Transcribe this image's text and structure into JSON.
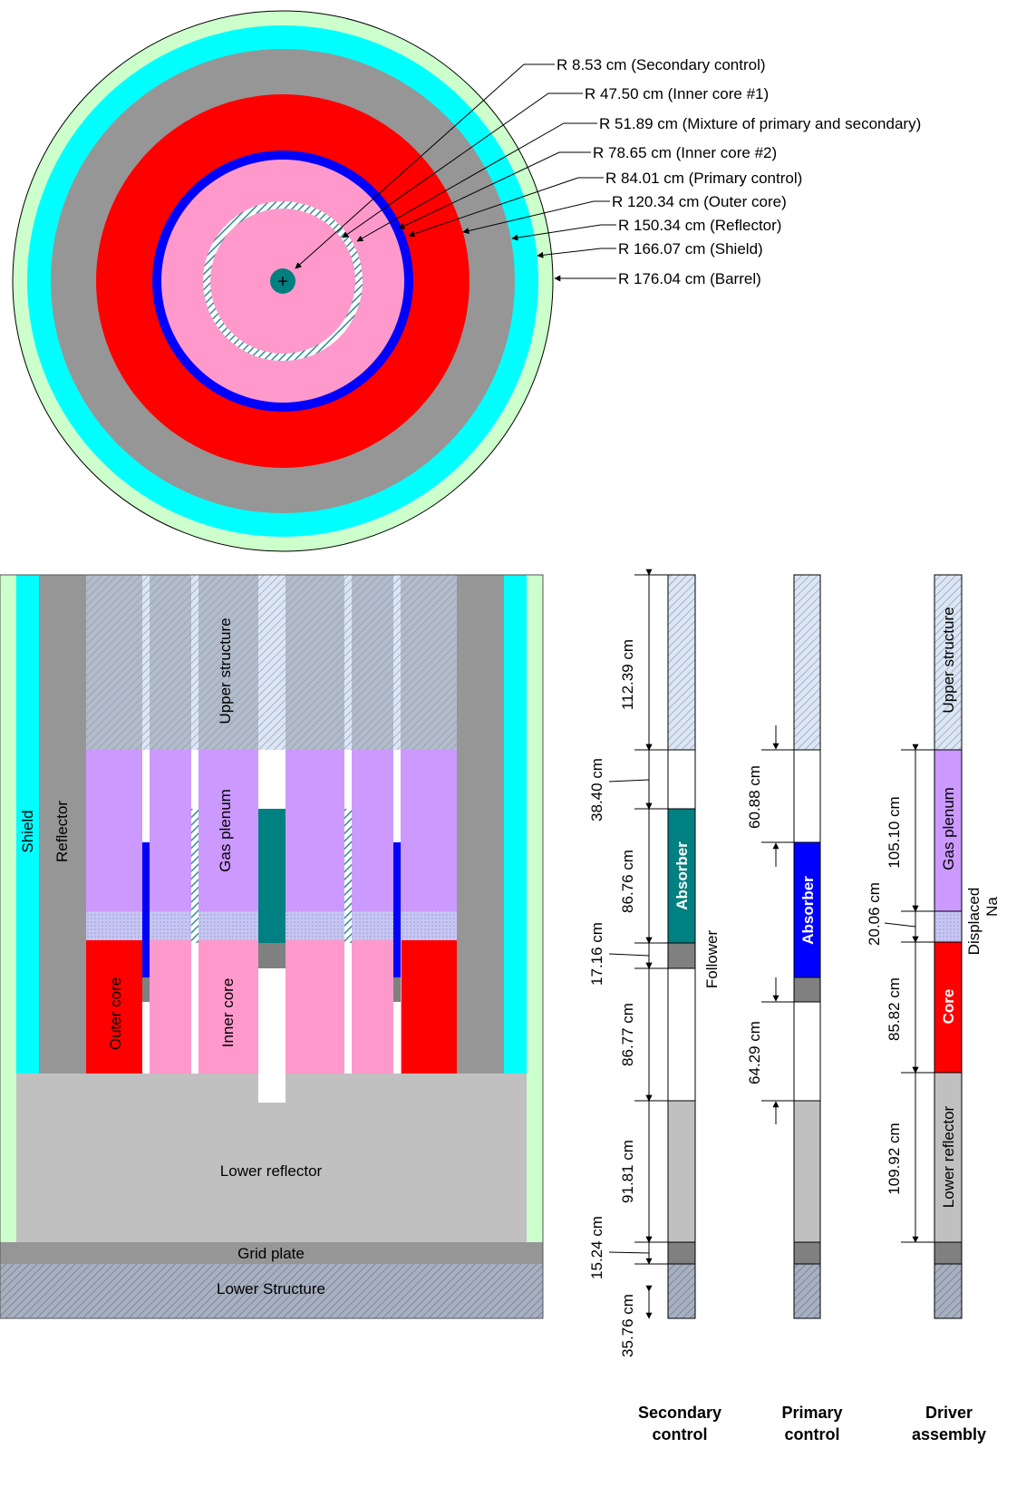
{
  "top_view": {
    "labels": [
      "R 8.53 cm (Secondary control)",
      "R 47.50 cm (Inner core #1)",
      "R 51.89 cm (Mixture of primary and secondary)",
      "R 78.65 cm (Inner core #2)",
      "R 84.01 cm (Primary control)",
      "R 120.34 cm (Outer core)",
      "R 150.34 cm (Reflector)",
      "R 166.07 cm (Shield)",
      "R 176.04 cm (Barrel)"
    ],
    "center_symbol": "+"
  },
  "side_view": {
    "shield": "Shield",
    "reflector": "Reflector",
    "upper_structure": "Upper structure",
    "gas_plenum": "Gas plenum",
    "outer_core": "Outer core",
    "inner_core": "Inner core",
    "lower_reflector": "Lower reflector",
    "grid_plate": "Grid plate",
    "lower_structure": "Lower Structure"
  },
  "assemblies": {
    "secondary": {
      "title_line1": "Secondary",
      "title_line2": "control",
      "absorber": "Absorber",
      "follower": "Follower",
      "dims": [
        "112.39 cm",
        "38.40 cm",
        "86.76 cm",
        "17.16 cm",
        "86.77 cm",
        "91.81 cm",
        "15.24 cm",
        "35.76 cm"
      ]
    },
    "primary": {
      "title_line1": "Primary",
      "title_line2": "control",
      "absorber": "Absorber",
      "dims": [
        "60.88 cm",
        "64.29 cm"
      ]
    },
    "driver": {
      "title_line1": "Driver",
      "title_line2": "assembly",
      "upper_structure": "Upper structure",
      "gas_plenum": "Gas plenum",
      "core": "Core",
      "lower_reflector": "Lower reflector",
      "displaced": "Displaced",
      "displaced_cont": "Na",
      "dims": [
        "105.10 cm",
        "20.06 cm",
        "85.82 cm",
        "109.92 cm"
      ]
    }
  },
  "colors": {
    "barrel": "#ccffcc",
    "shield": "#00ffff",
    "reflector": "#969696",
    "outer_core": "#ff0000",
    "primary_control": "#0000ff",
    "inner_core": "#ff99cc",
    "secondary_control": "#008080",
    "gas_plenum": "#cc99ff",
    "lower_reflector": "#c0c0c0",
    "grid_plate": "#808080",
    "upper_structure": "#c0cad8"
  }
}
